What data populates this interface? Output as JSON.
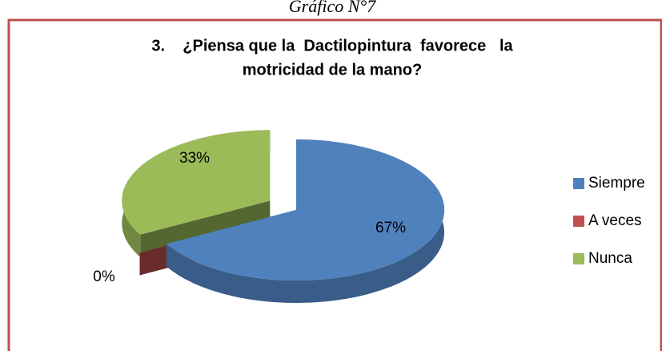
{
  "chart_data": {
    "type": "pie",
    "caption": "Gráfico N°7",
    "title": [
      "3.    ¿Piensa que la  Dactilopintura  favorece   la",
      "motricidad de  la mano?"
    ],
    "categories": [
      "Siempre",
      "A veces",
      "Nunca"
    ],
    "values": [
      67,
      0,
      33
    ],
    "value_labels": [
      "67%",
      "0%",
      "33%"
    ],
    "colors": [
      "#4f81bd",
      "#c0504d",
      "#9bbb59"
    ],
    "legend": "right"
  }
}
